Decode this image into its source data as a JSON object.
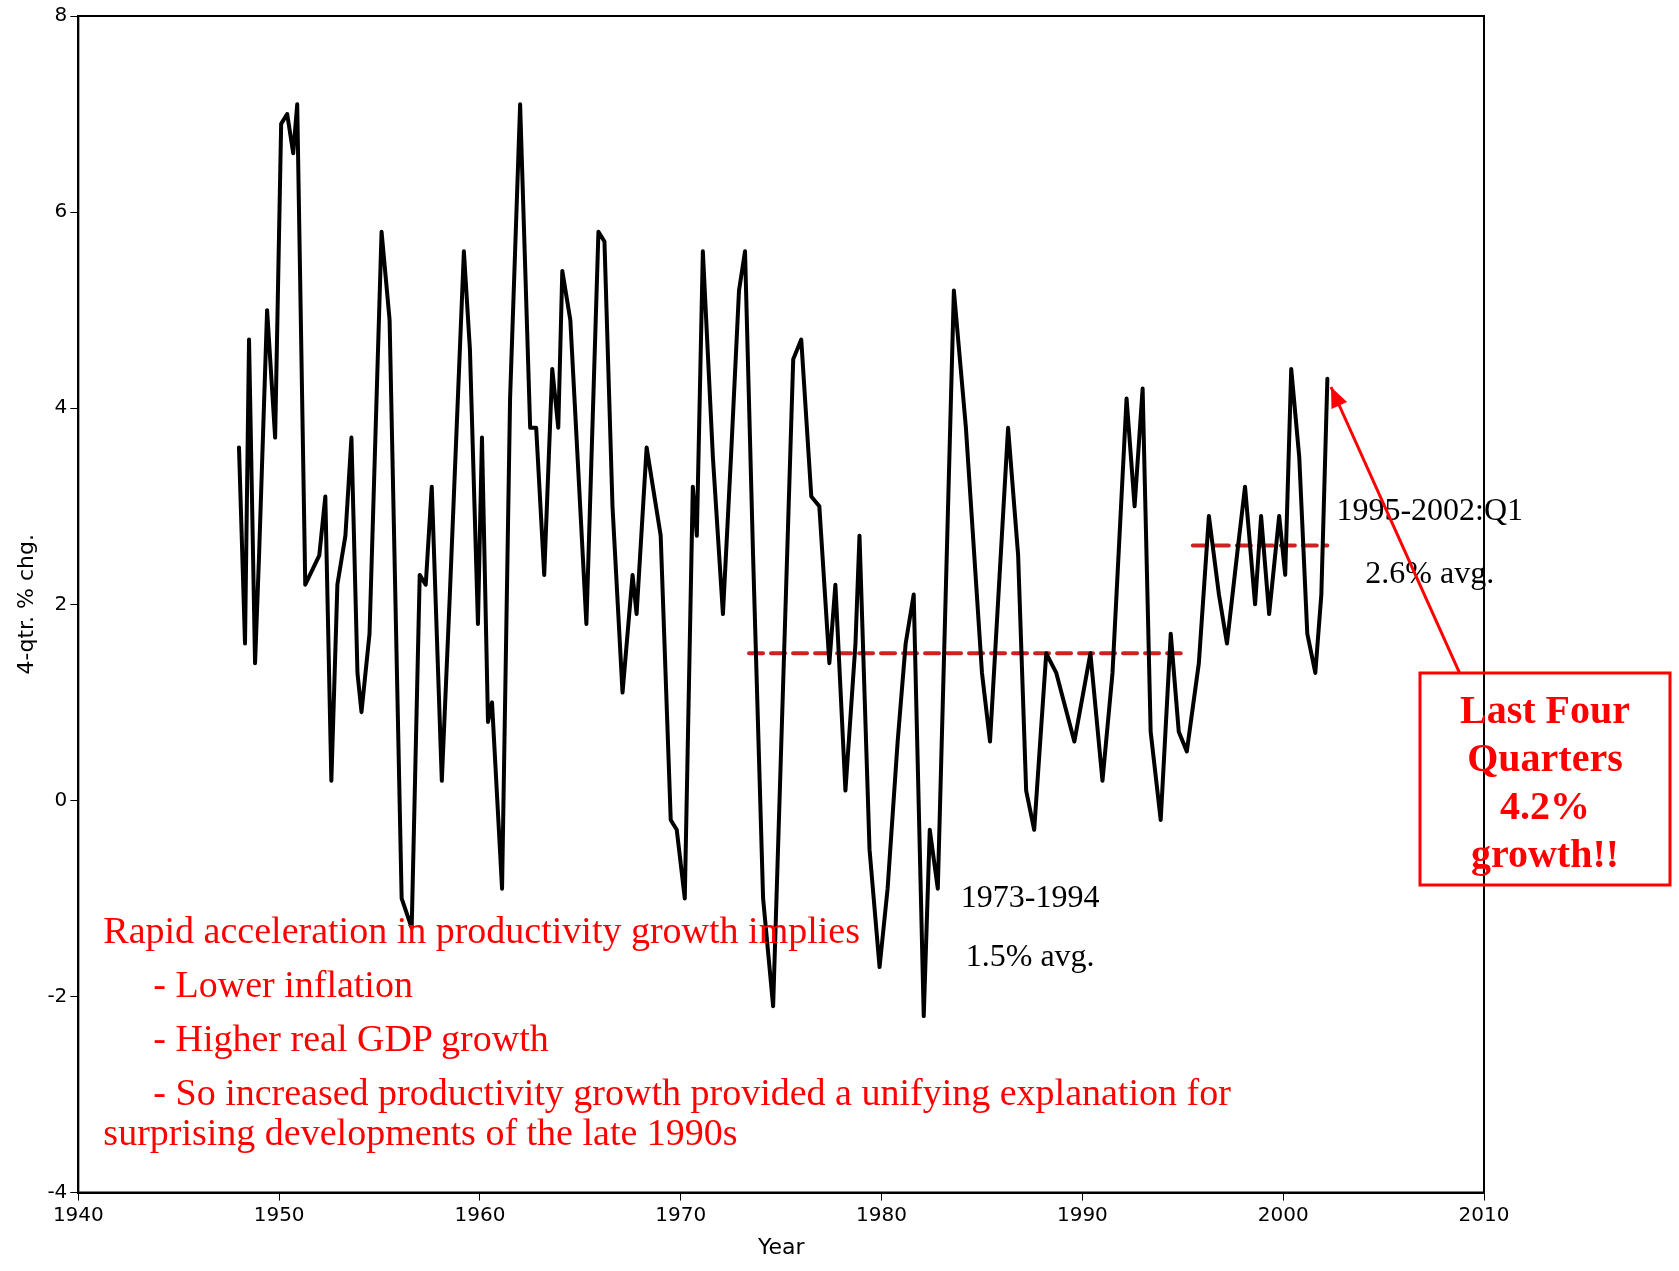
{
  "chart_data": {
    "type": "line",
    "xlabel": "Year",
    "ylabel": "4-qtr. % chg.",
    "xlim": [
      1940,
      2010
    ],
    "xticks": [
      1940,
      1950,
      1960,
      1970,
      1980,
      1990,
      2000,
      2010
    ],
    "ylim": [
      -4,
      8
    ],
    "yticks": [
      -4,
      -2,
      0,
      2,
      4,
      6,
      8
    ],
    "grid": false,
    "legend": false,
    "marker": "none",
    "series": [
      {
        "color": "#000000",
        "line_style": "solid",
        "x": [
          1948.0,
          1948.3,
          1948.5,
          1948.8,
          1949.0,
          1949.4,
          1949.8,
          1950.1,
          1950.4,
          1950.7,
          1950.9,
          1951.3,
          1952.0,
          1952.3,
          1952.6,
          1952.9,
          1953.3,
          1953.6,
          1953.9,
          1954.1,
          1954.5,
          1955.1,
          1955.5,
          1956.1,
          1956.6,
          1957.0,
          1957.3,
          1957.6,
          1958.1,
          1958.5,
          1959.2,
          1959.5,
          1959.9,
          1960.1,
          1960.4,
          1960.6,
          1961.1,
          1961.5,
          1962.0,
          1962.5,
          1962.8,
          1963.2,
          1963.6,
          1963.9,
          1964.1,
          1964.5,
          1965.3,
          1965.9,
          1966.2,
          1966.6,
          1967.1,
          1967.6,
          1967.8,
          1968.3,
          1969.0,
          1969.5,
          1969.8,
          1970.2,
          1970.6,
          1970.8,
          1971.1,
          1971.6,
          1972.1,
          1972.5,
          1972.9,
          1973.2,
          1973.6,
          1974.1,
          1974.6,
          1975.1,
          1975.6,
          1976.0,
          1976.5,
          1976.9,
          1977.4,
          1977.7,
          1978.2,
          1978.7,
          1978.9,
          1979.4,
          1979.9,
          1980.3,
          1980.8,
          1981.2,
          1981.6,
          1982.1,
          1982.4,
          1982.8,
          1983.6,
          1984.2,
          1985.0,
          1985.4,
          1986.3,
          1986.8,
          1987.2,
          1987.6,
          1988.2,
          1988.7,
          1989.6,
          1990.4,
          1991.0,
          1991.5,
          1992.2,
          1992.6,
          1993.0,
          1993.4,
          1993.9,
          1994.4,
          1994.8,
          1995.2,
          1995.8,
          1996.3,
          1996.8,
          1997.2,
          1997.7,
          1998.1,
          1998.6,
          1998.9,
          1999.3,
          1999.8,
          2000.1,
          2000.4,
          2000.8,
          2001.2,
          2001.6,
          2001.9,
          2002.2
        ],
        "values": [
          3.6,
          1.6,
          4.7,
          1.4,
          2.5,
          5.0,
          3.7,
          6.9,
          7.0,
          6.6,
          7.1,
          2.2,
          2.5,
          3.1,
          0.2,
          2.2,
          2.7,
          3.7,
          1.3,
          0.9,
          1.7,
          5.8,
          4.9,
          -1.0,
          -1.3,
          2.3,
          2.2,
          3.2,
          0.2,
          2.1,
          5.6,
          4.6,
          1.8,
          3.7,
          0.8,
          1.0,
          -0.9,
          4.1,
          7.1,
          3.8,
          3.8,
          2.3,
          4.4,
          3.8,
          5.4,
          4.9,
          1.8,
          5.8,
          5.7,
          3.0,
          1.1,
          2.3,
          1.9,
          3.6,
          2.7,
          -0.2,
          -0.3,
          -1.0,
          3.2,
          2.7,
          5.6,
          3.5,
          1.9,
          3.5,
          5.2,
          5.6,
          2.5,
          -1.0,
          -2.1,
          1.2,
          4.5,
          4.7,
          3.1,
          3.0,
          1.4,
          2.2,
          0.1,
          1.6,
          2.7,
          -0.5,
          -1.7,
          -0.9,
          0.6,
          1.6,
          2.1,
          -2.2,
          -0.3,
          -0.9,
          5.2,
          3.8,
          1.3,
          0.6,
          3.8,
          2.5,
          0.1,
          -0.3,
          1.5,
          1.3,
          0.6,
          1.5,
          0.2,
          1.3,
          4.1,
          3.0,
          4.2,
          0.7,
          -0.2,
          1.7,
          0.7,
          0.5,
          1.4,
          2.9,
          2.1,
          1.6,
          2.5,
          3.2,
          2.0,
          2.9,
          1.9,
          2.9,
          2.3,
          4.4,
          3.5,
          1.7,
          1.3,
          2.1,
          4.3
        ]
      },
      {
        "color": "#cc2222",
        "line_style": "dashed",
        "x": [
          1973.4,
          1994.9
        ],
        "values": [
          1.5,
          1.5
        ]
      },
      {
        "color": "#cc2222",
        "line_style": "dashed",
        "x": [
          1995.5,
          2002.2
        ],
        "values": [
          2.6,
          2.6
        ]
      }
    ],
    "annotations": [
      "1973-1994",
      "1.5% avg.",
      "1995-2002:Q1",
      "2.6% avg.",
      "Rapid acceleration in productivity growth implies",
      "- Lower inflation",
      "- Higher real GDP growth",
      "- So increased productivity growth provided a unifying explanation for surprising developments of the late 1990s",
      {
        "text": "Last Four Quarters 4.2% growth!!",
        "x": 2002.2,
        "y": 4.3
      }
    ]
  }
}
